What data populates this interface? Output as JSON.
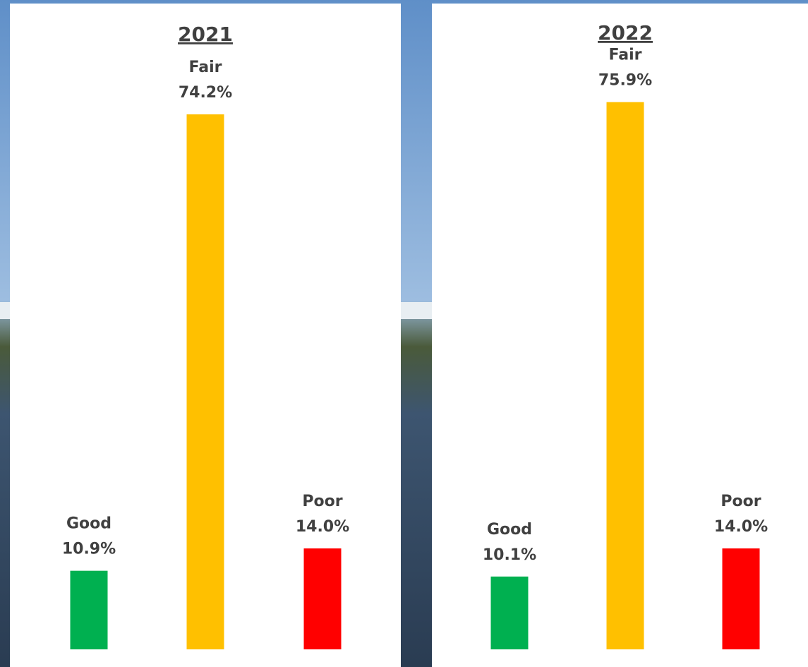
{
  "chart_data": [
    {
      "type": "bar",
      "title": "2021",
      "categories": [
        "Good",
        "Fair",
        "Poor"
      ],
      "values": [
        10.9,
        74.2,
        14.0
      ],
      "value_labels": [
        "10.9%",
        "74.2%",
        "14.0%"
      ],
      "colors": [
        "#00b050",
        "#ffc000",
        "#ff0000"
      ]
    },
    {
      "type": "bar",
      "title": "2022",
      "categories": [
        "Good",
        "Fair",
        "Poor"
      ],
      "values": [
        10.1,
        75.9,
        14.0
      ],
      "value_labels": [
        "10.1%",
        "75.9%",
        "14.0%"
      ],
      "colors": [
        "#00b050",
        "#ffc000",
        "#ff0000"
      ]
    }
  ]
}
